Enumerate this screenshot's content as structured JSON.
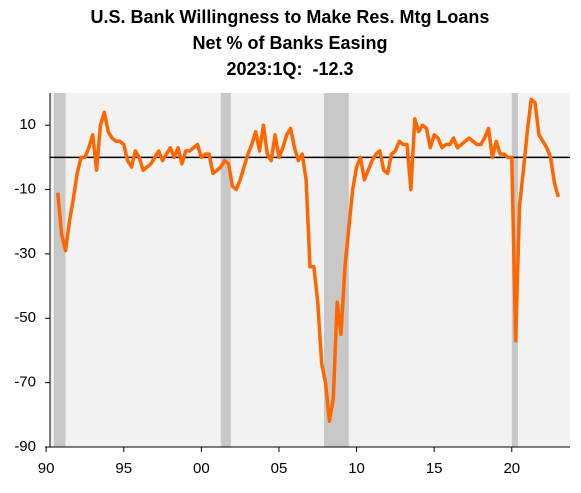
{
  "chart_data": {
    "type": "line",
    "title": "U.S. Bank Willingness to Make Res. Mtg Loans",
    "subtitle": "Net % of Banks Easing",
    "annotation": "2023:1Q:  -12.3",
    "x": [
      1990.75,
      1991,
      1991.25,
      1991.5,
      1991.75,
      1992,
      1992.25,
      1992.5,
      1992.75,
      1993,
      1993.25,
      1993.5,
      1993.75,
      1994,
      1994.25,
      1994.5,
      1994.75,
      1995,
      1995.25,
      1995.5,
      1995.75,
      1996,
      1996.25,
      1996.5,
      1996.75,
      1997,
      1997.25,
      1997.5,
      1997.75,
      1998,
      1998.25,
      1998.5,
      1998.75,
      1999,
      1999.25,
      1999.5,
      1999.75,
      2000,
      2000.25,
      2000.5,
      2000.75,
      2001,
      2001.25,
      2001.5,
      2001.75,
      2002,
      2002.25,
      2002.5,
      2002.75,
      2003,
      2003.25,
      2003.5,
      2003.75,
      2004,
      2004.25,
      2004.5,
      2004.75,
      2005,
      2005.25,
      2005.5,
      2005.75,
      2006,
      2006.25,
      2006.5,
      2006.75,
      2007,
      2007.25,
      2007.5,
      2007.75,
      2008,
      2008.25,
      2008.5,
      2008.75,
      2009,
      2009.25,
      2009.5,
      2009.75,
      2010,
      2010.25,
      2010.5,
      2010.75,
      2011,
      2011.25,
      2011.5,
      2011.75,
      2012,
      2012.25,
      2012.5,
      2012.75,
      2013,
      2013.25,
      2013.5,
      2013.75,
      2014,
      2014.25,
      2014.5,
      2014.75,
      2015,
      2015.25,
      2015.5,
      2015.75,
      2016,
      2016.25,
      2016.5,
      2016.75,
      2017,
      2017.25,
      2017.5,
      2017.75,
      2018,
      2018.25,
      2018.5,
      2018.75,
      2019,
      2019.25,
      2019.5,
      2019.75,
      2020,
      2020.25,
      2020.5,
      2020.75,
      2021,
      2021.25,
      2021.5,
      2021.75,
      2022,
      2022.25,
      2022.5,
      2022.75,
      2023
    ],
    "series": [
      {
        "color": "#ff6600",
        "values": [
          -11,
          -24,
          -29,
          -20,
          -13,
          -5,
          0,
          0,
          3,
          7,
          -4,
          10,
          14,
          8,
          6,
          5,
          5,
          4,
          -1,
          -3,
          2,
          0,
          -4,
          -3,
          -2,
          0,
          2,
          -1,
          1,
          3,
          0,
          3,
          -2,
          2,
          2,
          3,
          4,
          0,
          1,
          1,
          -5,
          -4,
          -3,
          -1,
          -2,
          -9,
          -10,
          -7,
          -3,
          1,
          4,
          8,
          2,
          10,
          1,
          -1,
          7,
          0,
          3,
          7,
          9,
          3,
          -1,
          1,
          -7,
          -34,
          -34,
          -45,
          -64,
          -70,
          -82,
          -75,
          -45,
          -55,
          -34,
          -22,
          -10,
          -3,
          0,
          -7,
          -4,
          -1,
          1,
          2,
          -4,
          -5,
          1,
          2,
          5,
          4,
          4,
          -10,
          12,
          8,
          10,
          9,
          3,
          7,
          6,
          3,
          4,
          4,
          6,
          3,
          4,
          5,
          6,
          5,
          4,
          4,
          6,
          9,
          0,
          5,
          1,
          1,
          0,
          0,
          -57,
          -15,
          -4,
          8,
          18,
          17,
          7,
          5,
          3,
          0,
          -8,
          -12.3
        ]
      }
    ],
    "shaded_periods": [
      [
        1990.5,
        1991.25
      ],
      [
        2001.25,
        2001.9
      ],
      [
        2007.9,
        2009.5
      ],
      [
        2020.0,
        2020.4
      ]
    ],
    "shade_color": "#c8c8c8",
    "reference_line": 0,
    "xlim": [
      1990.25,
      2023.75
    ],
    "xticks": [
      {
        "value": 1990,
        "label": "90"
      },
      {
        "value": 1995,
        "label": "95"
      },
      {
        "value": 2000,
        "label": "00"
      },
      {
        "value": 2005,
        "label": "05"
      },
      {
        "value": 2010,
        "label": "10"
      },
      {
        "value": 2015,
        "label": "15"
      },
      {
        "value": 2020,
        "label": "20"
      }
    ],
    "ylim": [
      -90,
      20
    ],
    "yticks": [
      10,
      -10,
      -30,
      -50,
      -70,
      -90
    ]
  }
}
